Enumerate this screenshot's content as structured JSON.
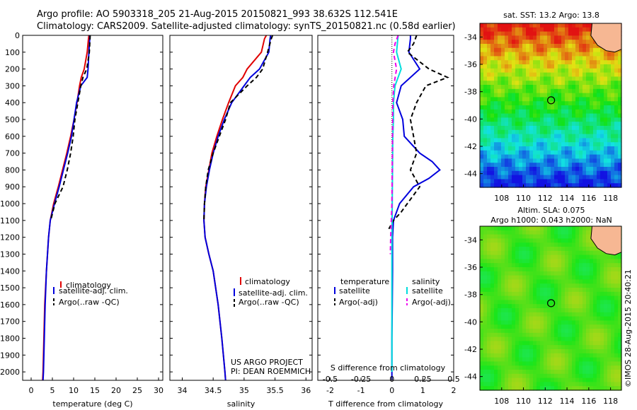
{
  "title_line1": "Argo profile: AO 5903318_205 21-Aug-2015 20150821_993 38.632S 112.541E",
  "title_line2": "Climatology: CARS2009. Satellite-adjusted climatology: synTS_20150821.nc (0.58d earlier)",
  "colors": {
    "climatology": "#e00000",
    "satellite": "#0000dd",
    "argo": "#000000",
    "cyan": "#00dddd",
    "magenta": "#ee00ee"
  },
  "legend_main": {
    "climatology": "climatology",
    "satellite": "satellite-adj. clim.",
    "argo": "Argo(..raw -QC)"
  },
  "legend_diff": {
    "temperature": "temperature",
    "salinity": "salinity",
    "satellite": "satellite",
    "argo": "Argo(-adj)"
  },
  "project_line1": "US ARGO PROJECT",
  "project_line2": "PI: DEAN ROEMMICH",
  "diff_top_label": "S difference from climatology",
  "sst_title": "sat. SST: 13.2 Argo: 13.8",
  "sla_title1": "Altim. SLA: 0.075",
  "sla_title2": "Argo h1000: 0.043 h2000: NaN",
  "copyright": "©IMOS 28-Aug-2015 20:40:21",
  "chart_data": [
    {
      "type": "line",
      "xlabel": "temperature (deg C)",
      "ylabel": "",
      "xlim": [
        -2,
        31
      ],
      "ylim": [
        2050,
        0
      ],
      "xticks": [
        0,
        5,
        10,
        15,
        20,
        25,
        30
      ],
      "yticks": [
        0,
        100,
        200,
        300,
        400,
        500,
        600,
        700,
        800,
        900,
        1000,
        1100,
        1200,
        1300,
        1400,
        1500,
        1600,
        1700,
        1800,
        1900,
        2000
      ],
      "series": [
        {
          "name": "climatology",
          "y": [
            0,
            20,
            100,
            200,
            250,
            300,
            400,
            500,
            600,
            700,
            800,
            900,
            1000,
            1100,
            1200,
            1400,
            1600,
            1800,
            2000,
            2050
          ],
          "values": [
            13.6,
            13.5,
            13.2,
            12.5,
            11.8,
            11.4,
            10.8,
            10.1,
            9.3,
            8.4,
            7.4,
            6.4,
            5.3,
            4.5,
            4.1,
            3.6,
            3.2,
            3.0,
            2.8,
            2.7
          ]
        },
        {
          "name": "satellite-adj. clim.",
          "y": [
            0,
            20,
            100,
            200,
            250,
            300,
            400,
            500,
            600,
            700,
            800,
            900,
            1000,
            1100,
            1200,
            1400,
            1600,
            1800,
            2000,
            2050
          ],
          "values": [
            13.8,
            13.8,
            13.6,
            13.4,
            13.2,
            11.7,
            10.7,
            10.1,
            9.5,
            8.6,
            7.6,
            6.6,
            5.5,
            4.5,
            4.1,
            3.6,
            3.3,
            3.1,
            2.9,
            2.8
          ]
        },
        {
          "name": "Argo(..raw -QC)",
          "y": [
            0,
            100,
            200,
            250,
            300,
            400,
            500,
            600,
            700,
            800,
            900,
            1000,
            1100
          ],
          "values": [
            13.9,
            13.7,
            13.1,
            12.2,
            11.7,
            11.0,
            10.3,
            9.9,
            9.3,
            8.5,
            7.5,
            5.6,
            4.6
          ]
        }
      ]
    },
    {
      "type": "line",
      "xlabel": "salinity",
      "ylabel": "",
      "xlim": [
        33.8,
        36.1
      ],
      "ylim": [
        2050,
        0
      ],
      "xticks": [
        34,
        34.5,
        35,
        35.5,
        36
      ],
      "series": [
        {
          "name": "climatology",
          "y": [
            0,
            20,
            100,
            200,
            250,
            300,
            400,
            500,
            600,
            700,
            800,
            900,
            1000,
            1100,
            1200,
            1300,
            1400,
            1600,
            1800,
            2000,
            2050
          ],
          "values": [
            35.36,
            35.33,
            35.28,
            35.05,
            34.98,
            34.86,
            34.75,
            34.65,
            34.56,
            34.48,
            34.43,
            34.38,
            34.36,
            34.35,
            34.37,
            34.43,
            34.5,
            34.58,
            34.64,
            34.69,
            34.7
          ]
        },
        {
          "name": "satellite-adj. clim.",
          "y": [
            0,
            20,
            100,
            200,
            250,
            300,
            400,
            500,
            600,
            700,
            800,
            900,
            1000,
            1100,
            1200,
            1300,
            1400,
            1600,
            1800,
            2000,
            2050
          ],
          "values": [
            35.43,
            35.42,
            35.4,
            35.25,
            35.1,
            35.0,
            34.8,
            34.68,
            34.58,
            34.5,
            34.44,
            34.39,
            34.36,
            34.35,
            34.37,
            34.43,
            34.5,
            34.58,
            34.64,
            34.69,
            34.7
          ]
        },
        {
          "name": "Argo(..raw -QC)",
          "y": [
            0,
            20,
            100,
            200,
            250,
            300,
            400,
            500,
            600,
            700,
            800,
            900,
            1000,
            1100
          ],
          "values": [
            35.46,
            35.44,
            35.38,
            35.3,
            35.2,
            35.05,
            34.78,
            34.7,
            34.6,
            34.5,
            34.42,
            34.38,
            34.36,
            34.35
          ]
        }
      ]
    },
    {
      "type": "line",
      "xlabel": "T difference from climatology",
      "x2label": "S difference from climatology",
      "xlim": [
        -2.4,
        2.0
      ],
      "x2ticks": [
        -0.5,
        -0.25,
        0,
        0.25,
        0.5
      ],
      "xticks": [
        -2,
        -1,
        0,
        1,
        2
      ],
      "ylim": [
        2050,
        0
      ],
      "series": [
        {
          "name": "temperature satellite",
          "y": [
            0,
            20,
            100,
            200,
            300,
            400,
            500,
            600,
            700,
            750,
            800,
            850,
            900,
            1000,
            1100,
            1200,
            1400,
            1600,
            1800,
            2000,
            2050
          ],
          "values": [
            0.6,
            0.6,
            0.55,
            0.9,
            0.3,
            0.15,
            0.35,
            0.4,
            0.9,
            1.3,
            1.55,
            1.2,
            0.7,
            0.25,
            0.05,
            0.02,
            0.02,
            0.01,
            0.0,
            0.0,
            0.0
          ]
        },
        {
          "name": "temperature Argo(-adj)",
          "y": [
            0,
            50,
            100,
            200,
            250,
            300,
            400,
            500,
            600,
            700,
            800,
            900,
            1000,
            1050,
            1100,
            1150
          ],
          "values": [
            0.8,
            0.7,
            0.5,
            1.2,
            1.8,
            1.1,
            0.8,
            0.6,
            0.7,
            0.8,
            0.6,
            0.9,
            0.5,
            0.3,
            0.05,
            -0.1
          ]
        },
        {
          "name": "salinity satellite",
          "y": [
            0,
            100,
            200,
            300,
            400,
            500,
            600,
            800,
            1000,
            1200,
            1600,
            2000
          ],
          "values": [
            0.2,
            0.15,
            0.3,
            0.1,
            0.05,
            0.05,
            0.03,
            0.02,
            0.01,
            0.0,
            0.0,
            0.0
          ]
        },
        {
          "name": "salinity Argo(-adj)",
          "y": [
            0,
            50,
            100,
            200,
            300,
            400,
            600,
            800,
            1000,
            1100,
            1200,
            1300
          ],
          "values": [
            0.2,
            0.1,
            0.05,
            0.15,
            0.06,
            0.03,
            0.02,
            0.01,
            0.0,
            -0.02,
            -0.04,
            -0.05
          ]
        }
      ]
    },
    {
      "type": "heatmap",
      "title": "sat. SST: 13.2 Argo: 13.8",
      "xlim": [
        106,
        119
      ],
      "ylim": [
        -45,
        -33
      ],
      "xticks": [
        108,
        110,
        112,
        114,
        116,
        118
      ],
      "yticks": [
        -34,
        -36,
        -38,
        -40,
        -42,
        -44
      ],
      "marker": {
        "lon": 112.54,
        "lat": -38.63
      }
    },
    {
      "type": "heatmap",
      "title": "Altim. SLA: 0.075",
      "xlim": [
        106,
        119
      ],
      "ylim": [
        -45,
        -33
      ],
      "xticks": [
        108,
        110,
        112,
        114,
        116,
        118
      ],
      "yticks": [
        -34,
        -36,
        -38,
        -40,
        -42,
        -44
      ],
      "marker": {
        "lon": 112.54,
        "lat": -38.63
      }
    }
  ]
}
